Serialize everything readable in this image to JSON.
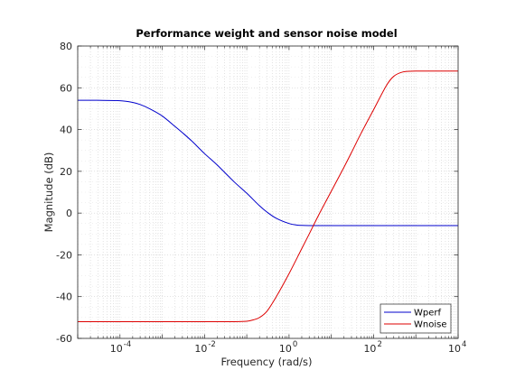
{
  "chart_data": {
    "type": "line",
    "title": "Performance weight and sensor noise model",
    "xlabel": "Frequency  (rad/s)",
    "ylabel": "Magnitude (dB)",
    "xscale": "log",
    "xlim": [
      1e-05,
      10000
    ],
    "ylim": [
      -60,
      80
    ],
    "y_ticks": [
      -60,
      -40,
      -20,
      0,
      20,
      40,
      60,
      80
    ],
    "x_ticks": [
      {
        "value": 0.0001,
        "base": "10",
        "exp": "-4"
      },
      {
        "value": 0.01,
        "base": "10",
        "exp": "-2"
      },
      {
        "value": 1,
        "base": "10",
        "exp": "0"
      },
      {
        "value": 100,
        "base": "10",
        "exp": "2"
      },
      {
        "value": 10000,
        "base": "10",
        "exp": "4"
      }
    ],
    "grid": true,
    "minor_grid": true,
    "legend_position": "bottom-right",
    "series": [
      {
        "name": "Wperf",
        "color": "#0000cc",
        "x": [
          1e-05,
          3e-05,
          0.0001,
          0.0002,
          0.0003,
          0.0005,
          0.001,
          0.002,
          0.003,
          0.005,
          0.01,
          0.02,
          0.05,
          0.1,
          0.2,
          0.3,
          0.5,
          1,
          1.5,
          2,
          3,
          5,
          10,
          100,
          1000,
          10000
        ],
        "y": [
          54,
          54,
          53.8,
          53,
          52,
          50,
          46.5,
          41.5,
          38.5,
          34.5,
          28.5,
          23,
          15,
          9.5,
          3.5,
          0.5,
          -2.5,
          -5,
          -5.7,
          -5.9,
          -6,
          -6,
          -6,
          -6,
          -6,
          -6
        ]
      },
      {
        "name": "Wnoise",
        "color": "#dd0000",
        "x": [
          1e-05,
          0.0001,
          0.001,
          0.01,
          0.05,
          0.1,
          0.15,
          0.2,
          0.3,
          0.5,
          1,
          2,
          3,
          5,
          10,
          20,
          30,
          50,
          100,
          200,
          300,
          500,
          1000,
          10000
        ],
        "y": [
          -52,
          -52,
          -52,
          -52,
          -52,
          -51.8,
          -51,
          -50,
          -47,
          -40,
          -29,
          -17,
          -10,
          -1,
          10.5,
          22,
          29,
          38,
          49.5,
          61,
          65.5,
          67.6,
          68,
          68
        ]
      }
    ]
  }
}
